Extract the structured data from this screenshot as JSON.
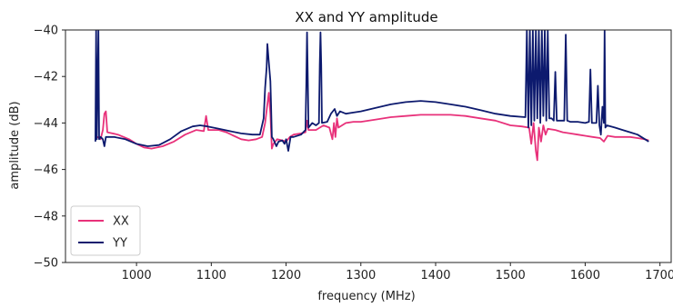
{
  "chart_data": {
    "type": "line",
    "title": "XX and YY amplitude",
    "xlabel": "frequency (MHz)",
    "ylabel": "amplitude (dB)",
    "xlim": [
      905,
      1715
    ],
    "ylim": [
      -50,
      -40
    ],
    "xticks": [
      1000,
      1100,
      1200,
      1300,
      1400,
      1500,
      1600,
      1700
    ],
    "yticks": [
      -40,
      -42,
      -44,
      -46,
      -48,
      -50
    ],
    "xtick_labels": [
      "1000",
      "1100",
      "1200",
      "1300",
      "1400",
      "1500",
      "1600",
      "1700"
    ],
    "ytick_labels": [
      "−40",
      "−42",
      "−44",
      "−46",
      "−48",
      "−50"
    ],
    "grid": false,
    "legend_position": "bottom-left",
    "series": [
      {
        "name": "XX",
        "color": "#e8317a",
        "points": [
          [
            945,
            -44.7
          ],
          [
            948,
            -44.6
          ],
          [
            952,
            -44.7
          ],
          [
            955,
            -44.3
          ],
          [
            957,
            -43.6
          ],
          [
            959,
            -43.5
          ],
          [
            961,
            -44.4
          ],
          [
            975,
            -44.5
          ],
          [
            990,
            -44.7
          ],
          [
            1000,
            -44.9
          ],
          [
            1010,
            -45.05
          ],
          [
            1020,
            -45.1
          ],
          [
            1035,
            -45.0
          ],
          [
            1050,
            -44.8
          ],
          [
            1065,
            -44.5
          ],
          [
            1080,
            -44.3
          ],
          [
            1090,
            -44.35
          ],
          [
            1093,
            -43.7
          ],
          [
            1096,
            -44.3
          ],
          [
            1110,
            -44.3
          ],
          [
            1120,
            -44.4
          ],
          [
            1130,
            -44.55
          ],
          [
            1140,
            -44.7
          ],
          [
            1150,
            -44.75
          ],
          [
            1160,
            -44.7
          ],
          [
            1168,
            -44.6
          ],
          [
            1172,
            -44.0
          ],
          [
            1175,
            -43.2
          ],
          [
            1177,
            -42.7
          ],
          [
            1179,
            -43.6
          ],
          [
            1181,
            -45.1
          ],
          [
            1183,
            -44.9
          ],
          [
            1188,
            -44.7
          ],
          [
            1195,
            -44.75
          ],
          [
            1200,
            -44.8
          ],
          [
            1205,
            -44.6
          ],
          [
            1210,
            -44.5
          ],
          [
            1220,
            -44.45
          ],
          [
            1226,
            -44.4
          ],
          [
            1228,
            -43.9
          ],
          [
            1230,
            -44.3
          ],
          [
            1240,
            -44.3
          ],
          [
            1250,
            -44.1
          ],
          [
            1258,
            -44.2
          ],
          [
            1262,
            -44.7
          ],
          [
            1264,
            -44.0
          ],
          [
            1266,
            -44.6
          ],
          [
            1268,
            -43.8
          ],
          [
            1270,
            -44.2
          ],
          [
            1280,
            -44.0
          ],
          [
            1290,
            -43.95
          ],
          [
            1300,
            -43.95
          ],
          [
            1320,
            -43.85
          ],
          [
            1340,
            -43.75
          ],
          [
            1360,
            -43.7
          ],
          [
            1380,
            -43.65
          ],
          [
            1400,
            -43.65
          ],
          [
            1420,
            -43.65
          ],
          [
            1440,
            -43.7
          ],
          [
            1460,
            -43.8
          ],
          [
            1480,
            -43.9
          ],
          [
            1500,
            -44.1
          ],
          [
            1515,
            -44.15
          ],
          [
            1525,
            -44.2
          ],
          [
            1528,
            -44.9
          ],
          [
            1531,
            -44.0
          ],
          [
            1534,
            -45.2
          ],
          [
            1536,
            -45.6
          ],
          [
            1538,
            -44.2
          ],
          [
            1541,
            -44.8
          ],
          [
            1544,
            -44.1
          ],
          [
            1547,
            -44.5
          ],
          [
            1550,
            -44.25
          ],
          [
            1560,
            -44.3
          ],
          [
            1570,
            -44.4
          ],
          [
            1580,
            -44.45
          ],
          [
            1590,
            -44.5
          ],
          [
            1600,
            -44.55
          ],
          [
            1610,
            -44.6
          ],
          [
            1620,
            -44.65
          ],
          [
            1625,
            -44.8
          ],
          [
            1630,
            -44.55
          ],
          [
            1640,
            -44.6
          ],
          [
            1650,
            -44.6
          ],
          [
            1660,
            -44.6
          ],
          [
            1670,
            -44.65
          ],
          [
            1680,
            -44.7
          ],
          [
            1685,
            -44.75
          ]
        ]
      },
      {
        "name": "YY",
        "color": "#0d1a6e",
        "points": [
          [
            945,
            -44.8
          ],
          [
            946,
            -40.0
          ],
          [
            947,
            -44.7
          ],
          [
            949,
            -40.0
          ],
          [
            950,
            -44.7
          ],
          [
            952,
            -44.6
          ],
          [
            955,
            -44.7
          ],
          [
            957,
            -45.0
          ],
          [
            959,
            -44.6
          ],
          [
            970,
            -44.6
          ],
          [
            985,
            -44.7
          ],
          [
            1000,
            -44.9
          ],
          [
            1015,
            -45.0
          ],
          [
            1030,
            -44.95
          ],
          [
            1045,
            -44.7
          ],
          [
            1060,
            -44.35
          ],
          [
            1075,
            -44.15
          ],
          [
            1085,
            -44.1
          ],
          [
            1095,
            -44.15
          ],
          [
            1110,
            -44.25
          ],
          [
            1125,
            -44.35
          ],
          [
            1140,
            -44.45
          ],
          [
            1155,
            -44.5
          ],
          [
            1165,
            -44.5
          ],
          [
            1170,
            -43.8
          ],
          [
            1172,
            -42.5
          ],
          [
            1174,
            -41.6
          ],
          [
            1175,
            -40.6
          ],
          [
            1177,
            -41.4
          ],
          [
            1179,
            -42.2
          ],
          [
            1180,
            -43.3
          ],
          [
            1181,
            -44.6
          ],
          [
            1183,
            -44.7
          ],
          [
            1187,
            -45.0
          ],
          [
            1190,
            -44.8
          ],
          [
            1195,
            -44.75
          ],
          [
            1198,
            -44.9
          ],
          [
            1200,
            -44.7
          ],
          [
            1203,
            -45.2
          ],
          [
            1206,
            -44.6
          ],
          [
            1210,
            -44.6
          ],
          [
            1220,
            -44.5
          ],
          [
            1226,
            -44.3
          ],
          [
            1227,
            -42.3
          ],
          [
            1228,
            -40.1
          ],
          [
            1229,
            -42.0
          ],
          [
            1230,
            -44.2
          ],
          [
            1235,
            -44.0
          ],
          [
            1240,
            -44.1
          ],
          [
            1244,
            -44.0
          ],
          [
            1245,
            -41.5
          ],
          [
            1246,
            -40.1
          ],
          [
            1247,
            -41.5
          ],
          [
            1248,
            -44.0
          ],
          [
            1255,
            -43.95
          ],
          [
            1260,
            -43.6
          ],
          [
            1265,
            -43.4
          ],
          [
            1268,
            -43.7
          ],
          [
            1272,
            -43.5
          ],
          [
            1280,
            -43.6
          ],
          [
            1290,
            -43.55
          ],
          [
            1300,
            -43.5
          ],
          [
            1320,
            -43.35
          ],
          [
            1340,
            -43.2
          ],
          [
            1360,
            -43.1
          ],
          [
            1380,
            -43.05
          ],
          [
            1400,
            -43.1
          ],
          [
            1420,
            -43.2
          ],
          [
            1440,
            -43.3
          ],
          [
            1460,
            -43.45
          ],
          [
            1480,
            -43.6
          ],
          [
            1500,
            -43.7
          ],
          [
            1520,
            -43.75
          ],
          [
            1522,
            -40.0
          ],
          [
            1524,
            -44.2
          ],
          [
            1526,
            -40.0
          ],
          [
            1528,
            -44.1
          ],
          [
            1530,
            -40.0
          ],
          [
            1532,
            -43.9
          ],
          [
            1534,
            -40.0
          ],
          [
            1536,
            -43.8
          ],
          [
            1538,
            -40.0
          ],
          [
            1540,
            -44.0
          ],
          [
            1542,
            -40.0
          ],
          [
            1544,
            -43.7
          ],
          [
            1546,
            -40.0
          ],
          [
            1548,
            -43.9
          ],
          [
            1550,
            -40.0
          ],
          [
            1552,
            -43.8
          ],
          [
            1555,
            -43.8
          ],
          [
            1558,
            -43.9
          ],
          [
            1560,
            -41.8
          ],
          [
            1562,
            -43.9
          ],
          [
            1568,
            -43.9
          ],
          [
            1572,
            -43.9
          ],
          [
            1574,
            -40.2
          ],
          [
            1576,
            -43.9
          ],
          [
            1580,
            -43.95
          ],
          [
            1590,
            -43.95
          ],
          [
            1600,
            -44.0
          ],
          [
            1605,
            -43.95
          ],
          [
            1607,
            -41.7
          ],
          [
            1609,
            -44.0
          ],
          [
            1615,
            -44.0
          ],
          [
            1617,
            -42.4
          ],
          [
            1619,
            -44.1
          ],
          [
            1621,
            -44.5
          ],
          [
            1623,
            -43.3
          ],
          [
            1625,
            -44.0
          ],
          [
            1626,
            -40.0
          ],
          [
            1627,
            -44.2
          ],
          [
            1629,
            -44.1
          ],
          [
            1640,
            -44.2
          ],
          [
            1650,
            -44.3
          ],
          [
            1660,
            -44.4
          ],
          [
            1670,
            -44.5
          ],
          [
            1680,
            -44.7
          ],
          [
            1685,
            -44.8
          ]
        ]
      }
    ]
  }
}
